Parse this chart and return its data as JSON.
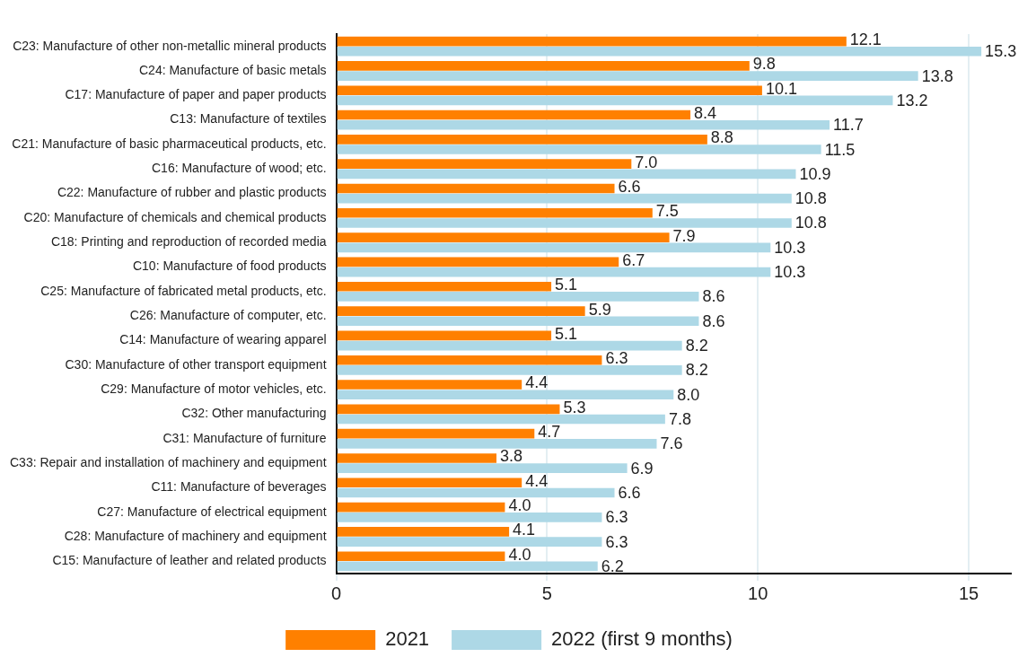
{
  "chart_data": {
    "type": "bar",
    "orientation": "horizontal",
    "categories": [
      "C23: Manufacture of other non-metallic mineral products",
      "C24: Manufacture of basic metals",
      "C17: Manufacture of paper and paper products",
      "C13: Manufacture of textiles",
      "C21: Manufacture of basic pharmaceutical products, etc.",
      "C16: Manufacture of wood; etc.",
      "C22: Manufacture of rubber and plastic products",
      "C20: Manufacture of chemicals and chemical products",
      "C18: Printing and reproduction of recorded media",
      "C10: Manufacture of food products",
      "C25: Manufacture of fabricated metal products, etc.",
      "C26: Manufacture of computer, etc.",
      "C14: Manufacture of wearing apparel",
      "C30: Manufacture of other transport equipment",
      "C29: Manufacture of motor vehicles, etc.",
      "C32: Other manufacturing",
      "C31: Manufacture of furniture",
      "C33: Repair and installation of machinery and equipment",
      "C11: Manufacture of beverages",
      "C27: Manufacture of electrical equipment",
      "C28: Manufacture of machinery and equipment",
      "C15: Manufacture of leather and related products"
    ],
    "series": [
      {
        "name": "2021",
        "color": "#ff8000",
        "values": [
          12.1,
          9.8,
          10.1,
          8.4,
          8.8,
          7.0,
          6.6,
          7.5,
          7.9,
          6.7,
          5.1,
          5.9,
          5.1,
          6.3,
          4.4,
          5.3,
          4.7,
          3.8,
          4.4,
          4.0,
          4.1,
          4.0
        ],
        "value_labels": [
          "12.1",
          "9.8",
          "10.1",
          "8.4",
          "8.8",
          "7.0",
          "6.6",
          "7.5",
          "7.9",
          "6.7",
          "5.1",
          "5.9",
          "5.1",
          "6.3",
          "4.4",
          "5.3",
          "4.7",
          "3.8",
          "4.4",
          "4.0",
          "4.1",
          "4.0"
        ]
      },
      {
        "name": "2022 (first 9 months)",
        "color": "#add8e6",
        "values": [
          15.3,
          13.8,
          13.2,
          11.7,
          11.5,
          10.9,
          10.8,
          10.8,
          10.3,
          10.3,
          8.6,
          8.6,
          8.2,
          8.2,
          8.0,
          7.8,
          7.6,
          6.9,
          6.6,
          6.3,
          6.3,
          6.2
        ],
        "value_labels": [
          "15.3",
          "13.8",
          "13.2",
          "11.7",
          "11.5",
          "10.9",
          "10.8",
          "10.8",
          "10.3",
          "10.3",
          "8.6",
          "8.6",
          "8.2",
          "8.2",
          "8.0",
          "7.8",
          "7.6",
          "6.9",
          "6.6",
          "6.3",
          "6.3",
          "6.2"
        ]
      }
    ],
    "xlim": [
      0,
      16
    ],
    "xticks": [
      0,
      5,
      10,
      15
    ],
    "grid": "x",
    "legend": "bottom"
  }
}
